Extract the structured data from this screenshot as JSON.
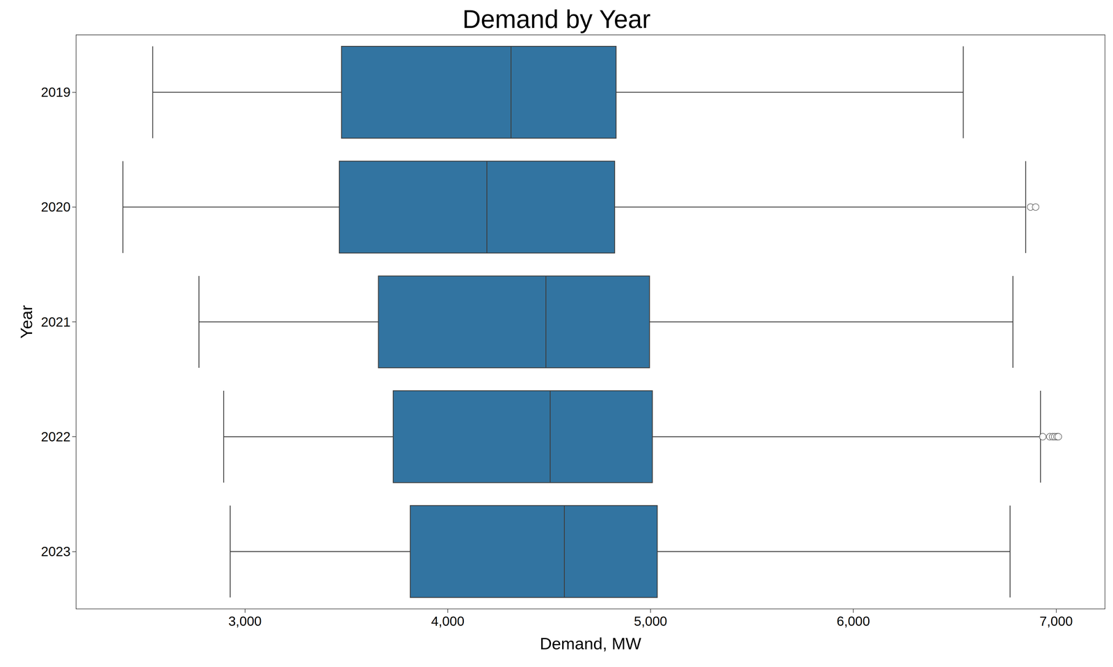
{
  "chart_data": {
    "type": "boxplot",
    "title": "Demand by Year",
    "orientation": "horizontal",
    "xlabel": "Demand, MW",
    "ylabel": "Year",
    "categories": [
      "2019",
      "2020",
      "2021",
      "2022",
      "2023"
    ],
    "values": [
      [
        2545,
        3476,
        4312,
        4830,
        6542
      ],
      [
        2398,
        3465,
        4193,
        4823,
        6850
      ],
      [
        2773,
        3658,
        4484,
        4995,
        6787
      ],
      [
        2895,
        3731,
        4505,
        5009,
        6923
      ],
      [
        2927,
        3815,
        4575,
        5033,
        6773
      ]
    ],
    "outliers": [
      [],
      [
        6874,
        6899
      ],
      [],
      [
        6934,
        6969,
        6983,
        6993,
        7004,
        7011
      ],
      []
    ],
    "color": "#3274a1",
    "marker": "circle",
    "xlim": [
      2167,
      7241
    ],
    "xticks": [
      3000,
      4000,
      5000,
      6000,
      7000
    ],
    "grid": false
  }
}
